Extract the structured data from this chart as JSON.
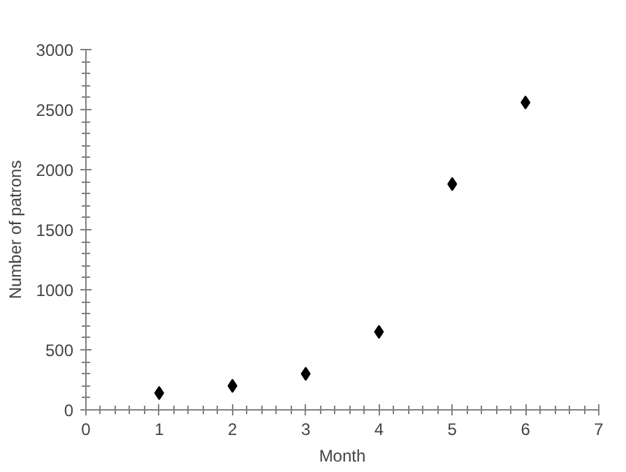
{
  "chart_data": {
    "type": "scatter",
    "xlabel": "Month",
    "ylabel": "Number of patrons",
    "x": [
      1,
      2,
      3,
      4,
      5,
      6
    ],
    "values": [
      140,
      200,
      300,
      650,
      1880,
      2560
    ],
    "color": "#000000",
    "marker": "diamond",
    "xlim": [
      0,
      7
    ],
    "xticks": [
      0,
      1,
      2,
      3,
      4,
      5,
      6,
      7
    ],
    "ylim": [
      0,
      3000
    ],
    "yticks": [
      0,
      500,
      1000,
      1500,
      2000,
      2500,
      3000
    ],
    "grid": false
  }
}
